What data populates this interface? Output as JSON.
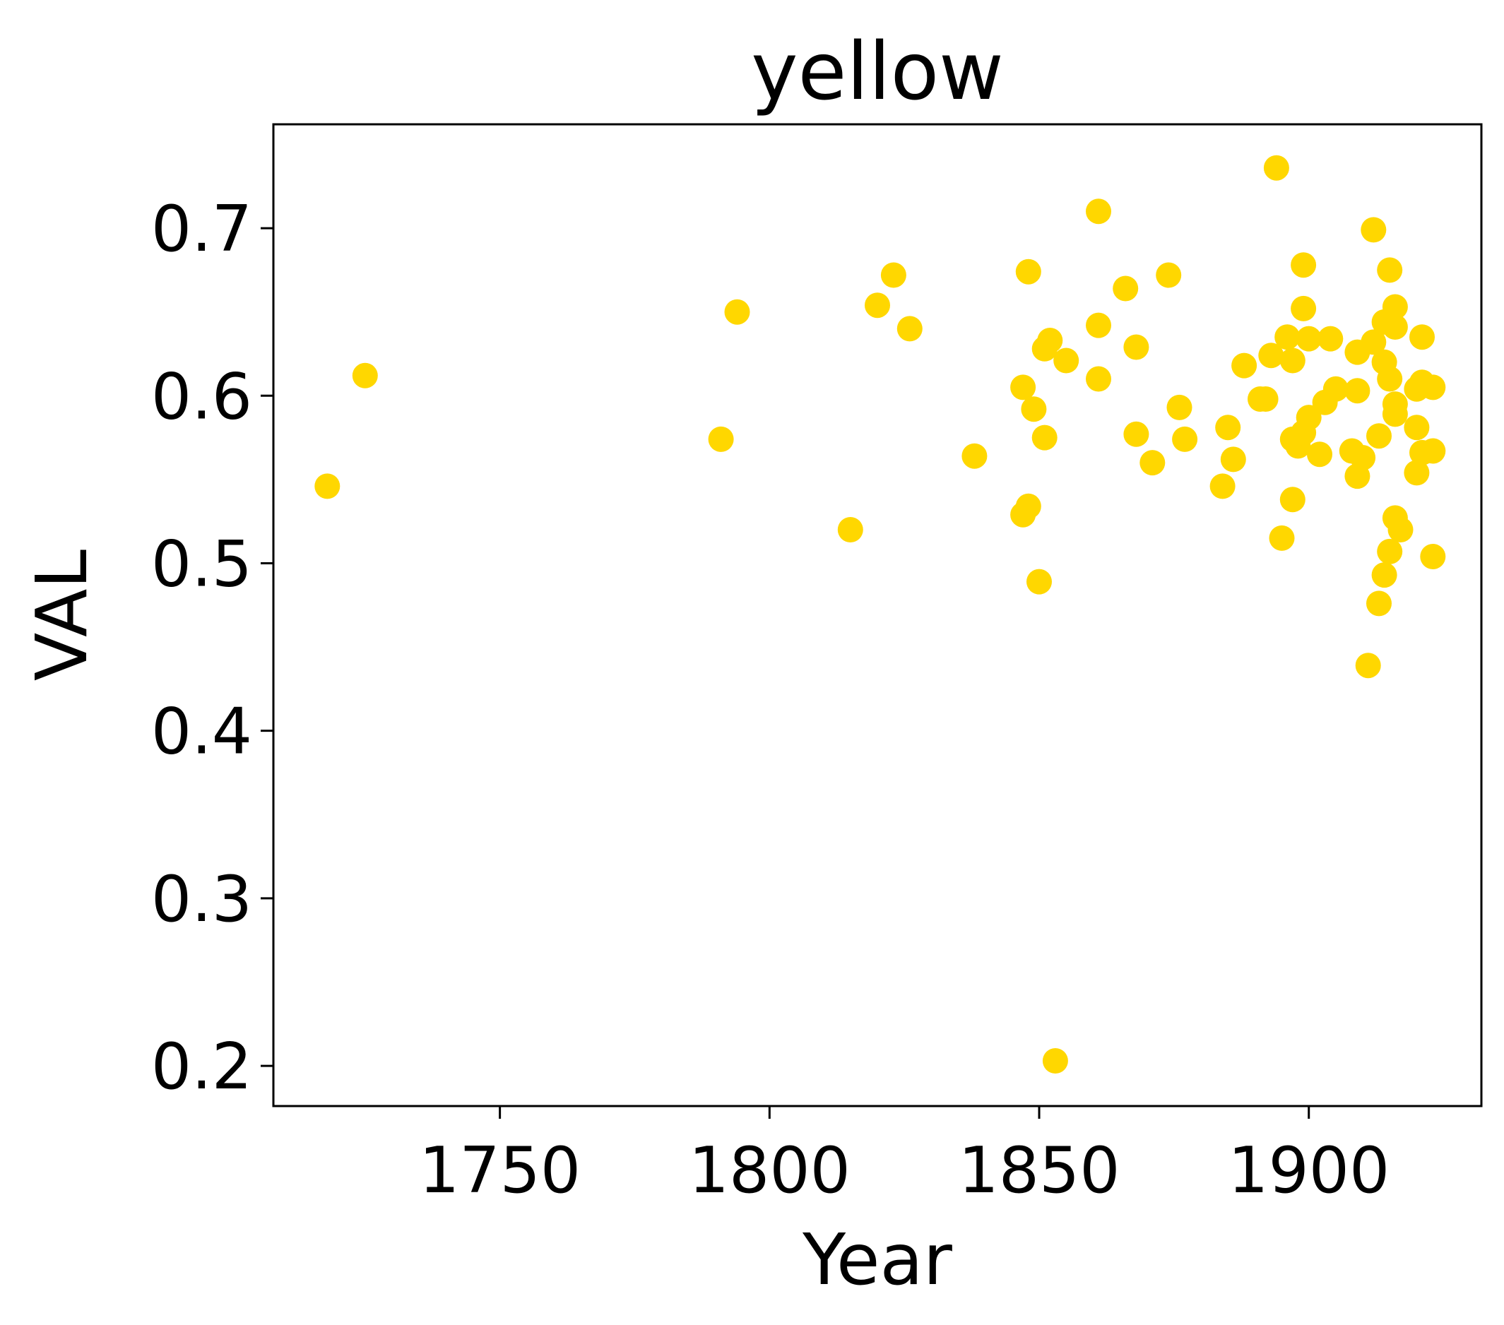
{
  "chart_data": {
    "type": "scatter",
    "title": "yellow",
    "xlabel": "Year",
    "ylabel": "VAL",
    "xlim": [
      1708,
      1932
    ],
    "ylim": [
      0.176,
      0.762
    ],
    "xticks": [
      1750,
      1800,
      1850,
      1900
    ],
    "yticks": [
      0.2,
      0.3,
      0.4,
      0.5,
      0.6,
      0.7
    ],
    "grid": false,
    "legend": "none",
    "marker_color": "#FFD700",
    "points": [
      {
        "x": 1718,
        "y": 0.546
      },
      {
        "x": 1725,
        "y": 0.612
      },
      {
        "x": 1791,
        "y": 0.574
      },
      {
        "x": 1794,
        "y": 0.65
      },
      {
        "x": 1815,
        "y": 0.52
      },
      {
        "x": 1820,
        "y": 0.654
      },
      {
        "x": 1823,
        "y": 0.672
      },
      {
        "x": 1826,
        "y": 0.64
      },
      {
        "x": 1838,
        "y": 0.564
      },
      {
        "x": 1847,
        "y": 0.605
      },
      {
        "x": 1847,
        "y": 0.529
      },
      {
        "x": 1848,
        "y": 0.534
      },
      {
        "x": 1848,
        "y": 0.674
      },
      {
        "x": 1849,
        "y": 0.592
      },
      {
        "x": 1850,
        "y": 0.489
      },
      {
        "x": 1851,
        "y": 0.575
      },
      {
        "x": 1851,
        "y": 0.628
      },
      {
        "x": 1852,
        "y": 0.633
      },
      {
        "x": 1853,
        "y": 0.203
      },
      {
        "x": 1855,
        "y": 0.621
      },
      {
        "x": 1861,
        "y": 0.71
      },
      {
        "x": 1861,
        "y": 0.642
      },
      {
        "x": 1861,
        "y": 0.61
      },
      {
        "x": 1866,
        "y": 0.664
      },
      {
        "x": 1868,
        "y": 0.629
      },
      {
        "x": 1868,
        "y": 0.577
      },
      {
        "x": 1871,
        "y": 0.56
      },
      {
        "x": 1874,
        "y": 0.672
      },
      {
        "x": 1876,
        "y": 0.593
      },
      {
        "x": 1877,
        "y": 0.574
      },
      {
        "x": 1884,
        "y": 0.546
      },
      {
        "x": 1885,
        "y": 0.581
      },
      {
        "x": 1886,
        "y": 0.562
      },
      {
        "x": 1888,
        "y": 0.618
      },
      {
        "x": 1891,
        "y": 0.598
      },
      {
        "x": 1892,
        "y": 0.598
      },
      {
        "x": 1893,
        "y": 0.624
      },
      {
        "x": 1894,
        "y": 0.736
      },
      {
        "x": 1895,
        "y": 0.515
      },
      {
        "x": 1896,
        "y": 0.635
      },
      {
        "x": 1897,
        "y": 0.574
      },
      {
        "x": 1897,
        "y": 0.621
      },
      {
        "x": 1897,
        "y": 0.538
      },
      {
        "x": 1898,
        "y": 0.57
      },
      {
        "x": 1899,
        "y": 0.678
      },
      {
        "x": 1899,
        "y": 0.652
      },
      {
        "x": 1899,
        "y": 0.578
      },
      {
        "x": 1900,
        "y": 0.587
      },
      {
        "x": 1900,
        "y": 0.634
      },
      {
        "x": 1902,
        "y": 0.565
      },
      {
        "x": 1903,
        "y": 0.596
      },
      {
        "x": 1904,
        "y": 0.634
      },
      {
        "x": 1905,
        "y": 0.604
      },
      {
        "x": 1908,
        "y": 0.567
      },
      {
        "x": 1909,
        "y": 0.626
      },
      {
        "x": 1909,
        "y": 0.552
      },
      {
        "x": 1909,
        "y": 0.603
      },
      {
        "x": 1910,
        "y": 0.563
      },
      {
        "x": 1911,
        "y": 0.439
      },
      {
        "x": 1912,
        "y": 0.699
      },
      {
        "x": 1912,
        "y": 0.632
      },
      {
        "x": 1913,
        "y": 0.576
      },
      {
        "x": 1913,
        "y": 0.476
      },
      {
        "x": 1914,
        "y": 0.644
      },
      {
        "x": 1914,
        "y": 0.62
      },
      {
        "x": 1914,
        "y": 0.493
      },
      {
        "x": 1915,
        "y": 0.61
      },
      {
        "x": 1915,
        "y": 0.507
      },
      {
        "x": 1915,
        "y": 0.675
      },
      {
        "x": 1916,
        "y": 0.653
      },
      {
        "x": 1916,
        "y": 0.641
      },
      {
        "x": 1916,
        "y": 0.595
      },
      {
        "x": 1916,
        "y": 0.589
      },
      {
        "x": 1916,
        "y": 0.527
      },
      {
        "x": 1917,
        "y": 0.52
      },
      {
        "x": 1920,
        "y": 0.604
      },
      {
        "x": 1920,
        "y": 0.581
      },
      {
        "x": 1920,
        "y": 0.554
      },
      {
        "x": 1921,
        "y": 0.635
      },
      {
        "x": 1921,
        "y": 0.608
      },
      {
        "x": 1921,
        "y": 0.566
      },
      {
        "x": 1923,
        "y": 0.605
      },
      {
        "x": 1923,
        "y": 0.567
      },
      {
        "x": 1923,
        "y": 0.504
      }
    ]
  }
}
